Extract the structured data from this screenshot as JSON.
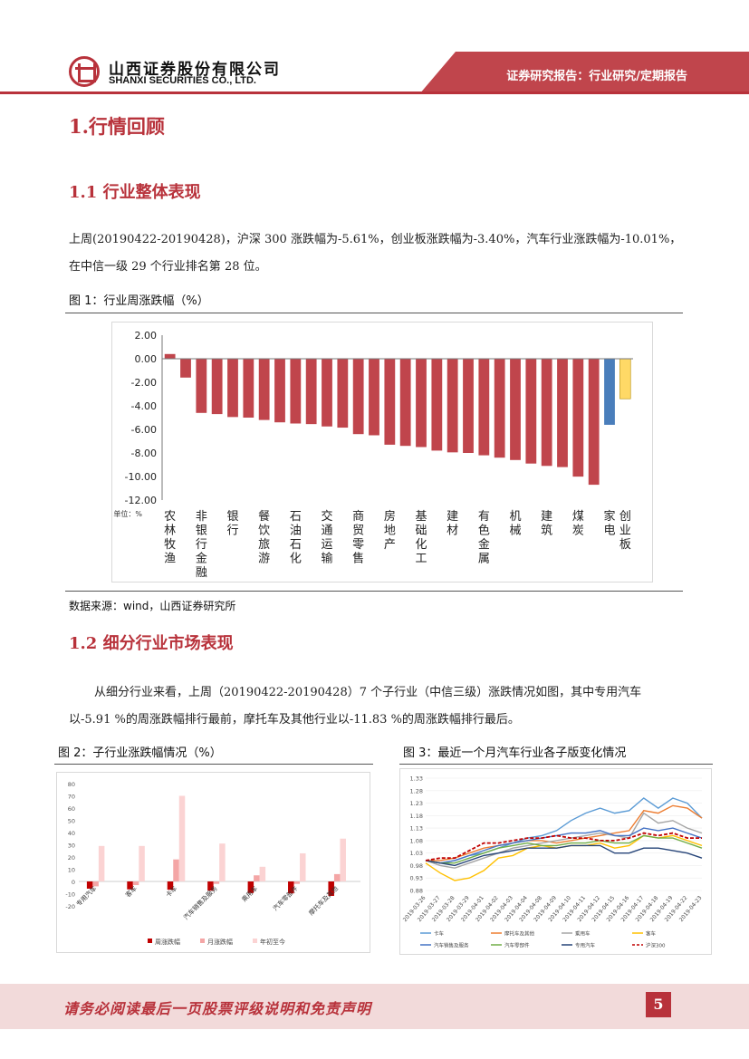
{
  "header": {
    "company_cn": "山西证券股份有限公司",
    "company_en": "SHANXI SECURITIES CO., LTD.",
    "report_type": "证券研究报告：行业研究/定期报告",
    "brand_color": "#b8323b"
  },
  "section1": {
    "title": "1.行情回顾"
  },
  "section1_1": {
    "title": "1.1 行业整体表现",
    "para_line1": "上周(20190422-20190428)，沪深 300 涨跌幅为-5.61%，创业板涨跌幅为-3.40%，汽车行业涨跌幅为-10.01%，",
    "para_line2": "在中信一级 29 个行业排名第 28 位。",
    "fig_caption": "图 1：行业周涨跌幅（%）",
    "source": "数据来源：wind，山西证券研究所"
  },
  "section1_2": {
    "title": "1.2 细分行业市场表现",
    "para_line1": "从细分行业来看，上周（20190422-20190428）7 个子行业（中信三级）涨跌情况如图，其中专用汽车",
    "para_line2": "以-5.91 %的周涨跌幅排行最前，摩托车及其他行业以-11.83 %的周涨跌幅排行最后。",
    "fig2_caption": "图 2：子行业涨跌幅情况（%）",
    "fig3_caption": "图 3：最近一个月汽车行业各子版变化情况"
  },
  "footer": {
    "disclaimer": "请务必阅读最后一页股票评级说明和免责声明",
    "page": "5"
  },
  "chart_data": [
    {
      "type": "bar",
      "title": "行业周涨跌幅（%）",
      "unit_label": "单位：%",
      "ylim": [
        -12,
        2
      ],
      "yticks": [
        "2.00",
        "0.00",
        "-2.00",
        "-4.00",
        "-6.00",
        "-8.00",
        "-10.00",
        "-12.00"
      ],
      "values": [
        0.4,
        -1.6,
        -4.6,
        -4.7,
        -4.95,
        -5.0,
        -5.2,
        -5.4,
        -5.5,
        -5.55,
        -5.75,
        -5.85,
        -6.4,
        -6.5,
        -7.3,
        -7.4,
        -7.5,
        -7.8,
        -7.95,
        -8.0,
        -8.2,
        -8.4,
        -8.6,
        -8.9,
        -9.1,
        -9.2,
        -10.01,
        -10.7,
        -5.61,
        -3.4
      ],
      "colors": {
        "industry": "#c0454c",
        "hs300": "#4a7ebb",
        "cyb": "#ffd966"
      },
      "tick_labels": [
        {
          "label": "农林牧渔",
          "index": 0
        },
        {
          "label": "非银行金融",
          "index": 2
        },
        {
          "label": "银行",
          "index": 4
        },
        {
          "label": "餐饮旅游",
          "index": 6
        },
        {
          "label": "石油石化",
          "index": 8
        },
        {
          "label": "交通运输",
          "index": 10
        },
        {
          "label": "商贸零售",
          "index": 12
        },
        {
          "label": "房地产",
          "index": 14
        },
        {
          "label": "基础化工",
          "index": 16
        },
        {
          "label": "建材",
          "index": 18
        },
        {
          "label": "有色金属",
          "index": 20
        },
        {
          "label": "机械",
          "index": 22
        },
        {
          "label": "建筑",
          "index": 24
        },
        {
          "label": "煤炭",
          "index": 26
        },
        {
          "label": "家电",
          "index": 28
        },
        {
          "label": "创业板",
          "index": 29
        }
      ]
    },
    {
      "type": "bar",
      "title": "子行业涨跌幅情况（%）",
      "ylim": [
        -20,
        80
      ],
      "yticks": [
        "80",
        "70",
        "60",
        "50",
        "40",
        "30",
        "20",
        "10",
        "0",
        "-10",
        "-20"
      ],
      "categories": [
        "专用汽车",
        "客车",
        "卡车",
        "汽车销售及服务",
        "乘用车",
        "汽车零部件",
        "摩托车及其他"
      ],
      "series": [
        {
          "name": "周涨跌幅",
          "color": "#c00000",
          "values": [
            -5.91,
            -6.5,
            -6.8,
            -7.5,
            -9.5,
            -9.8,
            -11.83
          ]
        },
        {
          "name": "月涨跌幅",
          "color": "#f4a6a6",
          "values": [
            -4,
            -3,
            18,
            -2,
            5,
            -2,
            6
          ]
        },
        {
          "name": "年初至今",
          "color": "#fbd3d3",
          "values": [
            29,
            29,
            70,
            31,
            12,
            23,
            35
          ]
        }
      ]
    },
    {
      "type": "line",
      "title": "最近一个月汽车行业各子版变化情况",
      "ylim": [
        0.88,
        1.33
      ],
      "yticks": [
        "1.33",
        "1.28",
        "1.23",
        "1.18",
        "1.13",
        "1.08",
        "1.03",
        "0.98",
        "0.93",
        "0.88"
      ],
      "x": [
        "2019-03-26",
        "2019-03-27",
        "2019-03-28",
        "2019-03-29",
        "2019-04-01",
        "2019-04-02",
        "2019-04-03",
        "2019-04-04",
        "2019-04-08",
        "2019-04-09",
        "2019-04-10",
        "2019-04-11",
        "2019-04-12",
        "2019-04-15",
        "2019-04-16",
        "2019-04-17",
        "2019-04-18",
        "2019-04-19",
        "2019-04-22",
        "2019-04-23"
      ],
      "series": [
        {
          "name": "卡车",
          "color": "#5b9bd5",
          "values": [
            1.0,
            0.99,
            1.0,
            1.02,
            1.03,
            1.05,
            1.07,
            1.09,
            1.1,
            1.12,
            1.16,
            1.19,
            1.21,
            1.19,
            1.2,
            1.25,
            1.21,
            1.25,
            1.23,
            1.17
          ]
        },
        {
          "name": "摩托车及其他",
          "color": "#ed7d31",
          "values": [
            1.0,
            1.0,
            1.01,
            1.03,
            1.05,
            1.06,
            1.07,
            1.08,
            1.08,
            1.07,
            1.08,
            1.09,
            1.1,
            1.11,
            1.12,
            1.2,
            1.19,
            1.22,
            1.21,
            1.17
          ]
        },
        {
          "name": "乘用车",
          "color": "#a5a5a5",
          "values": [
            1.0,
            0.98,
            0.97,
            0.99,
            1.01,
            1.03,
            1.05,
            1.06,
            1.07,
            1.08,
            1.09,
            1.1,
            1.11,
            1.1,
            1.09,
            1.19,
            1.15,
            1.16,
            1.13,
            1.11
          ]
        },
        {
          "name": "客车",
          "color": "#ffc000",
          "values": [
            0.99,
            0.95,
            0.92,
            0.93,
            0.96,
            1.01,
            1.02,
            1.05,
            1.06,
            1.05,
            1.06,
            1.06,
            1.07,
            1.05,
            1.06,
            1.1,
            1.09,
            1.1,
            1.08,
            1.06
          ]
        },
        {
          "name": "汽车销售及服务",
          "color": "#4472c4",
          "values": [
            1.0,
            0.99,
            1.0,
            1.02,
            1.04,
            1.06,
            1.07,
            1.08,
            1.09,
            1.1,
            1.11,
            1.11,
            1.12,
            1.1,
            1.1,
            1.13,
            1.12,
            1.13,
            1.11,
            1.09
          ]
        },
        {
          "name": "汽车零部件",
          "color": "#70ad47",
          "values": [
            1.0,
            0.99,
            0.99,
            1.01,
            1.03,
            1.05,
            1.06,
            1.07,
            1.06,
            1.06,
            1.07,
            1.07,
            1.08,
            1.07,
            1.07,
            1.1,
            1.09,
            1.09,
            1.07,
            1.05
          ]
        },
        {
          "name": "专用汽车",
          "color": "#264478",
          "values": [
            1.0,
            0.99,
            0.98,
            1.0,
            1.02,
            1.03,
            1.04,
            1.05,
            1.05,
            1.05,
            1.06,
            1.06,
            1.06,
            1.03,
            1.03,
            1.05,
            1.05,
            1.04,
            1.03,
            1.01
          ]
        },
        {
          "name": "沪深300",
          "color": "#c00000",
          "dashed": true,
          "values": [
            1.0,
            1.01,
            1.01,
            1.04,
            1.07,
            1.07,
            1.08,
            1.09,
            1.09,
            1.1,
            1.09,
            1.09,
            1.08,
            1.08,
            1.09,
            1.11,
            1.1,
            1.11,
            1.09,
            1.09
          ]
        }
      ]
    }
  ]
}
